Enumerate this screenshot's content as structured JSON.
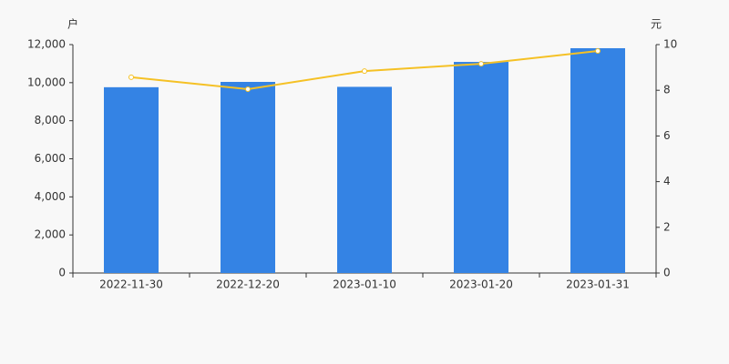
{
  "chart_data": {
    "type": "bar-line",
    "y_axis_label": "户",
    "y2_axis_label": "元",
    "categories": [
      "2022-11-30",
      "2022-12-20",
      "2023-01-10",
      "2023-01-20",
      "2023-01-31"
    ],
    "series": [
      {
        "type": "bar",
        "color": "#3483e4",
        "values": [
          9760,
          10040,
          9780,
          11090,
          11810
        ]
      },
      {
        "type": "line",
        "color": "#f5c125",
        "axis": "y2",
        "values": [
          8.57,
          8.05,
          8.84,
          9.16,
          9.72
        ]
      }
    ],
    "ylim": [
      0,
      12000
    ],
    "yticks": [
      0,
      {
        "value": 2000,
        "label": "2,000"
      },
      {
        "value": 4000,
        "label": "4,000"
      },
      {
        "value": 6000,
        "label": "6,000"
      },
      {
        "value": 8000,
        "label": "8,000"
      },
      {
        "value": 10000,
        "label": "10,000"
      },
      {
        "value": 12000,
        "label": "12,000"
      }
    ],
    "y2lim": [
      0,
      10
    ],
    "y2ticks": [
      0,
      2,
      4,
      6,
      8,
      10
    ]
  }
}
